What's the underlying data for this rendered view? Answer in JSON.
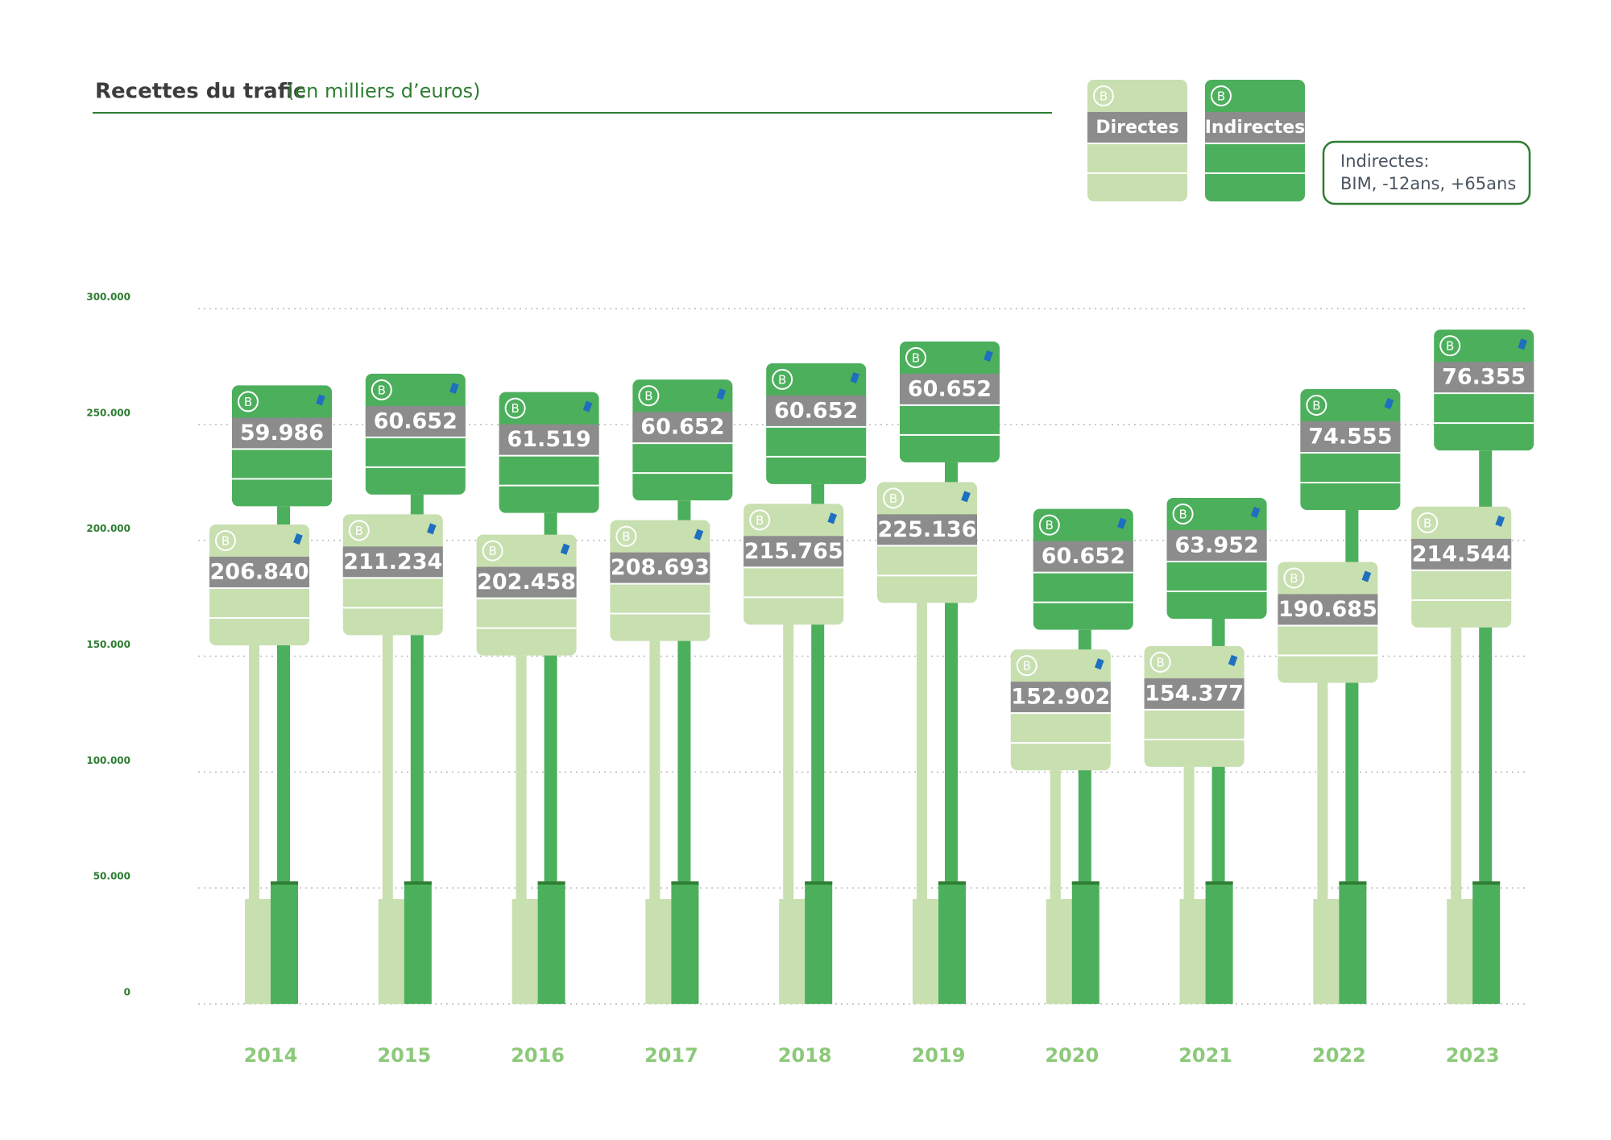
{
  "chart_data": {
    "type": "stacked_signs",
    "title": "Recettes du trafic",
    "subtitle": "(en milliers d’euros)",
    "note": [
      "Indirectes:",
      "BIM, -12ans, +65ans"
    ],
    "categories": [
      "2014",
      "2015",
      "2016",
      "2017",
      "2018",
      "2019",
      "2020",
      "2021",
      "2022",
      "2023"
    ],
    "series": [
      {
        "name": "Directes",
        "color": "#c8dfb0",
        "values": [
          206840,
          211234,
          202458,
          208693,
          215765,
          225136,
          152902,
          154377,
          190685,
          214544
        ],
        "value_labels": [
          "206.840",
          "211.234",
          "202.458",
          "208.693",
          "215.765",
          "225.136",
          "152.902",
          "154.377",
          "190.685",
          "214.544"
        ]
      },
      {
        "name": "Indirectes",
        "color": "#4caf5c",
        "values": [
          59986,
          60652,
          61519,
          60652,
          60652,
          60652,
          60652,
          63952,
          74555,
          76355
        ],
        "value_labels": [
          "59.986",
          "60.652",
          "61.519",
          "60.652",
          "60.652",
          "60.652",
          "60.652",
          "63.952",
          "74.555",
          "76.355"
        ]
      }
    ],
    "ylim": [
      0,
      300000
    ],
    "yticks": [
      0,
      {
        "value": 50000,
        "label": "50.000"
      },
      {
        "value": 100000,
        "label": "100.000"
      },
      {
        "value": 150000,
        "label": "150.000"
      },
      {
        "value": 200000,
        "label": "200.000"
      },
      {
        "value": 250000,
        "label": "250.000"
      },
      {
        "value": 300000,
        "label": "300.000"
      }
    ],
    "grid": true
  }
}
